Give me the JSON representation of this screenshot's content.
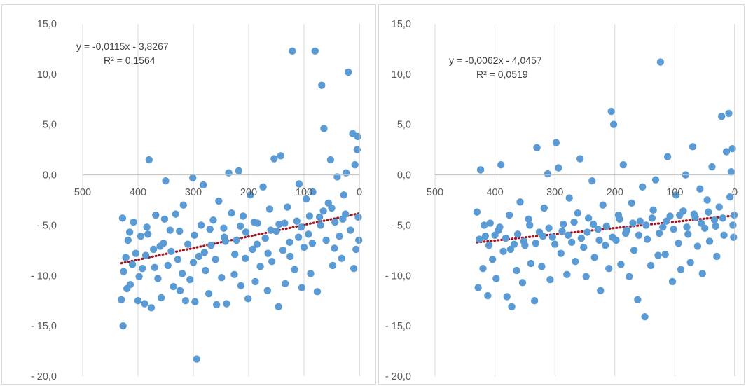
{
  "colors": {
    "points": "#5B9BD5",
    "trendline": "#A0141E",
    "grid": "#D9D9D9",
    "axis": "#BFBFBF",
    "text": "#595959"
  },
  "chart_data": [
    {
      "type": "scatter",
      "title": "",
      "xlabel": "",
      "ylabel": "",
      "xlim": [
        500,
        0
      ],
      "ylim": [
        -20,
        15
      ],
      "x_reversed": true,
      "xticks": [
        500,
        400,
        300,
        200,
        100,
        0
      ],
      "xtick_labels": [
        "500",
        "400",
        "300",
        "200",
        "100",
        "0"
      ],
      "yticks": [
        15,
        10,
        5,
        0,
        -5,
        -10,
        -15,
        -20
      ],
      "ytick_labels": [
        "15,0",
        "10,0",
        "5,0",
        "0,0",
        "- 5,0",
        "- 10,0",
        "- 15,0",
        "- 20,0"
      ],
      "gridlines": "vertical",
      "trendline": {
        "slope": -0.0115,
        "intercept": -3.8267,
        "x_range": [
          430,
          0
        ]
      },
      "equation": "y = -0,0115x - 3,8267",
      "r_squared": "R² = 0,1564",
      "points": [
        [
          427,
          -15.0
        ],
        [
          430,
          -12.4
        ],
        [
          426,
          -9.6
        ],
        [
          422,
          -8.2
        ],
        [
          428,
          -4.3
        ],
        [
          418,
          -6.5
        ],
        [
          414,
          -10.9
        ],
        [
          408,
          -4.7
        ],
        [
          404,
          -7.8
        ],
        [
          400,
          -12.5
        ],
        [
          395,
          -6.1
        ],
        [
          392,
          -9.3
        ],
        [
          388,
          -12.8
        ],
        [
          384,
          -5.2
        ],
        [
          380,
          1.5
        ],
        [
          376,
          -13.2
        ],
        [
          372,
          -7.4
        ],
        [
          368,
          -4.0
        ],
        [
          364,
          -10.3
        ],
        [
          358,
          -12.2
        ],
        [
          354,
          -6.8
        ],
        [
          350,
          -0.6
        ],
        [
          346,
          -9.0
        ],
        [
          342,
          -5.5
        ],
        [
          336,
          -11.1
        ],
        [
          332,
          -3.9
        ],
        [
          328,
          -8.4
        ],
        [
          324,
          -11.5
        ],
        [
          318,
          -3.0
        ],
        [
          314,
          -12.5
        ],
        [
          310,
          -6.9
        ],
        [
          306,
          -10.4
        ],
        [
          301,
          -0.3
        ],
        [
          297,
          -12.6
        ],
        [
          294,
          -18.3
        ],
        [
          290,
          -8.1
        ],
        [
          286,
          -5.0
        ],
        [
          282,
          -1.0
        ],
        [
          278,
          -9.5
        ],
        [
          272,
          -11.8
        ],
        [
          268,
          -7.0
        ],
        [
          264,
          -4.5
        ],
        [
          258,
          -12.9
        ],
        [
          254,
          -2.6
        ],
        [
          249,
          -10.2
        ],
        [
          244,
          -6.2
        ],
        [
          240,
          -12.8
        ],
        [
          236,
          0.2
        ],
        [
          231,
          -3.8
        ],
        [
          226,
          -9.9
        ],
        [
          222,
          -6.5
        ],
        [
          218,
          0.4
        ],
        [
          214,
          -11.0
        ],
        [
          210,
          -4.1
        ],
        [
          206,
          -8.3
        ],
        [
          201,
          -12.3
        ],
        [
          197,
          -2.0
        ],
        [
          193,
          -7.4
        ],
        [
          188,
          -10.6
        ],
        [
          184,
          -4.8
        ],
        [
          179,
          -9.1
        ],
        [
          174,
          -1.2
        ],
        [
          170,
          -6.3
        ],
        [
          166,
          -11.5
        ],
        [
          162,
          -3.4
        ],
        [
          158,
          -8.6
        ],
        [
          154,
          1.6
        ],
        [
          150,
          -5.6
        ],
        [
          146,
          -13.1
        ],
        [
          142,
          1.9
        ],
        [
          138,
          -7.5
        ],
        [
          134,
          -10.8
        ],
        [
          130,
          -3.2
        ],
        [
          126,
          -6.7
        ],
        [
          121,
          12.3
        ],
        [
          117,
          -9.4
        ],
        [
          113,
          -4.6
        ],
        [
          109,
          -0.9
        ],
        [
          104,
          -11.2
        ],
        [
          100,
          -7.2
        ],
        [
          96,
          -2.4
        ],
        [
          92,
          -5.9
        ],
        [
          88,
          -9.8
        ],
        [
          84,
          -1.7
        ],
        [
          80,
          12.3
        ],
        [
          76,
          -11.6
        ],
        [
          72,
          -4.2
        ],
        [
          68,
          8.9
        ],
        [
          64,
          4.6
        ],
        [
          60,
          -6.5
        ],
        [
          56,
          -2.8
        ],
        [
          52,
          1.5
        ],
        [
          48,
          -9.0
        ],
        [
          44,
          -4.7
        ],
        [
          40,
          -0.2
        ],
        [
          36,
          -6.1
        ],
        [
          32,
          -8.3
        ],
        [
          28,
          -2.0
        ],
        [
          24,
          0.2
        ],
        [
          20,
          10.2
        ],
        [
          16,
          -5.5
        ],
        [
          12,
          4.1
        ],
        [
          10,
          -9.3
        ],
        [
          8,
          1.0
        ],
        [
          6,
          -7.4
        ],
        [
          4,
          2.5
        ],
        [
          3,
          3.8
        ],
        [
          2,
          -4.2
        ],
        [
          1,
          -6.5
        ],
        [
          420,
          -11.3
        ],
        [
          410,
          -8.9
        ],
        [
          398,
          -10.1
        ],
        [
          386,
          -8.0
        ],
        [
          370,
          -9.2
        ],
        [
          360,
          -7.1
        ],
        [
          340,
          -7.6
        ],
        [
          320,
          -9.8
        ],
        [
          300,
          -8.7
        ],
        [
          280,
          -7.7
        ],
        [
          260,
          -8.4
        ],
        [
          245,
          -5.3
        ],
        [
          225,
          -7.9
        ],
        [
          205,
          -5.7
        ],
        [
          185,
          -6.9
        ],
        [
          165,
          -7.8
        ],
        [
          145,
          -4.9
        ],
        [
          125,
          -8.1
        ],
        [
          105,
          -5.2
        ],
        [
          85,
          -6.8
        ],
        [
          65,
          -3.6
        ],
        [
          45,
          -7.3
        ],
        [
          25,
          -3.9
        ],
        [
          415,
          -5.7
        ],
        [
          382,
          -5.9
        ],
        [
          352,
          -4.4
        ],
        [
          325,
          -5.6
        ],
        [
          298,
          -6.0
        ],
        [
          270,
          -5.4
        ],
        [
          242,
          -6.6
        ],
        [
          215,
          -5.1
        ],
        [
          190,
          -4.7
        ],
        [
          160,
          -5.5
        ],
        [
          135,
          -4.8
        ],
        [
          110,
          -6.2
        ],
        [
          90,
          -4.1
        ],
        [
          70,
          -5.0
        ],
        [
          50,
          -3.3
        ],
        [
          30,
          -4.4
        ]
      ]
    },
    {
      "type": "scatter",
      "title": "",
      "xlabel": "",
      "ylabel": "",
      "xlim": [
        500,
        0
      ],
      "ylim": [
        -20,
        15
      ],
      "x_reversed": true,
      "xticks": [
        500,
        400,
        300,
        200,
        100,
        0
      ],
      "xtick_labels": [
        "500",
        "400",
        "300",
        "200",
        "100",
        "0"
      ],
      "yticks": [
        15,
        10,
        5,
        0,
        -5,
        -10,
        -15,
        -20
      ],
      "ytick_labels": [
        "15,0",
        "10,0",
        "5,0",
        "0,0",
        "- 5,0",
        "- 10,0",
        "- 15,0",
        "- 20,0"
      ],
      "gridlines": "vertical",
      "trendline": {
        "slope": -0.0062,
        "intercept": -4.0457,
        "x_range": [
          430,
          0
        ]
      },
      "equation": "y = -0,0062x - 4,0457",
      "r_squared": "R² = 0,0519",
      "points": [
        [
          430,
          -3.7
        ],
        [
          428,
          -11.2
        ],
        [
          424,
          0.5
        ],
        [
          420,
          -9.3
        ],
        [
          416,
          -6.1
        ],
        [
          412,
          -12.0
        ],
        [
          408,
          -4.8
        ],
        [
          404,
          -8.4
        ],
        [
          398,
          -10.3
        ],
        [
          394,
          -5.5
        ],
        [
          390,
          1.0
        ],
        [
          386,
          -7.6
        ],
        [
          380,
          -12.1
        ],
        [
          376,
          -4.0
        ],
        [
          372,
          -13.1
        ],
        [
          368,
          -6.9
        ],
        [
          364,
          -9.5
        ],
        [
          358,
          -2.7
        ],
        [
          354,
          -10.7
        ],
        [
          350,
          -7.0
        ],
        [
          344,
          -4.4
        ],
        [
          340,
          -8.8
        ],
        [
          334,
          -12.5
        ],
        [
          330,
          2.7
        ],
        [
          326,
          -5.7
        ],
        [
          322,
          -9.1
        ],
        [
          318,
          -3.3
        ],
        [
          312,
          0.1
        ],
        [
          308,
          -10.4
        ],
        [
          304,
          -6.2
        ],
        [
          298,
          3.2
        ],
        [
          294,
          0.7
        ],
        [
          290,
          -7.8
        ],
        [
          286,
          -4.9
        ],
        [
          280,
          -9.9
        ],
        [
          276,
          -2.3
        ],
        [
          272,
          -6.7
        ],
        [
          266,
          -8.6
        ],
        [
          262,
          -3.8
        ],
        [
          258,
          1.6
        ],
        [
          252,
          -7.2
        ],
        [
          248,
          -10.1
        ],
        [
          244,
          -4.3
        ],
        [
          238,
          -0.6
        ],
        [
          234,
          -8.2
        ],
        [
          228,
          -5.4
        ],
        [
          224,
          -11.5
        ],
        [
          220,
          -3.0
        ],
        [
          216,
          -7.0
        ],
        [
          210,
          -9.3
        ],
        [
          206,
          6.3
        ],
        [
          202,
          5.0
        ],
        [
          198,
          -6.5
        ],
        [
          194,
          -4.0
        ],
        [
          190,
          -8.9
        ],
        [
          186,
          1.0
        ],
        [
          182,
          -5.8
        ],
        [
          176,
          -10.1
        ],
        [
          172,
          -2.8
        ],
        [
          168,
          -7.5
        ],
        [
          162,
          -12.4
        ],
        [
          158,
          -4.6
        ],
        [
          154,
          -1.2
        ],
        [
          150,
          -14.1
        ],
        [
          146,
          -6.4
        ],
        [
          140,
          -9.0
        ],
        [
          136,
          -3.5
        ],
        [
          132,
          -0.5
        ],
        [
          128,
          -8.0
        ],
        [
          124,
          11.2
        ],
        [
          120,
          -5.2
        ],
        [
          116,
          -7.9
        ],
        [
          112,
          1.8
        ],
        [
          108,
          -4.1
        ],
        [
          104,
          -10.6
        ],
        [
          98,
          -2.0
        ],
        [
          94,
          -6.8
        ],
        [
          90,
          -9.4
        ],
        [
          86,
          -3.6
        ],
        [
          82,
          0.0
        ],
        [
          78,
          -5.9
        ],
        [
          74,
          -8.7
        ],
        [
          70,
          2.8
        ],
        [
          66,
          -4.2
        ],
        [
          62,
          -7.1
        ],
        [
          58,
          -1.4
        ],
        [
          54,
          -9.8
        ],
        [
          50,
          -5.3
        ],
        [
          46,
          -2.5
        ],
        [
          42,
          -6.6
        ],
        [
          38,
          0.8
        ],
        [
          34,
          -4.5
        ],
        [
          30,
          -8.1
        ],
        [
          26,
          -3.2
        ],
        [
          22,
          5.8
        ],
        [
          18,
          -6.0
        ],
        [
          14,
          2.3
        ],
        [
          10,
          6.1
        ],
        [
          8,
          -2.2
        ],
        [
          6,
          0.3
        ],
        [
          4,
          2.6
        ],
        [
          3,
          -5.0
        ],
        [
          2,
          -6.2
        ],
        [
          1,
          -4.0
        ],
        [
          426,
          -6.4
        ],
        [
          418,
          -5.0
        ],
        [
          410,
          -7.0
        ],
        [
          400,
          -6.0
        ],
        [
          392,
          -5.2
        ],
        [
          382,
          -6.3
        ],
        [
          374,
          -7.4
        ],
        [
          362,
          -5.9
        ],
        [
          352,
          -6.6
        ],
        [
          342,
          -5.0
        ],
        [
          332,
          -6.8
        ],
        [
          320,
          -6.1
        ],
        [
          310,
          -5.3
        ],
        [
          300,
          -6.9
        ],
        [
          288,
          -5.6
        ],
        [
          278,
          -6.0
        ],
        [
          268,
          -4.7
        ],
        [
          256,
          -6.3
        ],
        [
          246,
          -5.7
        ],
        [
          236,
          -4.9
        ],
        [
          226,
          -6.5
        ],
        [
          214,
          -5.1
        ],
        [
          204,
          -6.2
        ],
        [
          192,
          -4.4
        ],
        [
          180,
          -5.5
        ],
        [
          170,
          -4.8
        ],
        [
          160,
          -6.0
        ],
        [
          148,
          -5.0
        ],
        [
          138,
          -4.3
        ],
        [
          126,
          -5.8
        ],
        [
          114,
          -4.6
        ],
        [
          102,
          -5.4
        ],
        [
          92,
          -4.0
        ],
        [
          80,
          -5.2
        ],
        [
          68,
          -3.9
        ],
        [
          56,
          -4.8
        ],
        [
          44,
          -3.7
        ],
        [
          32,
          -5.1
        ],
        [
          20,
          -4.3
        ]
      ]
    }
  ]
}
